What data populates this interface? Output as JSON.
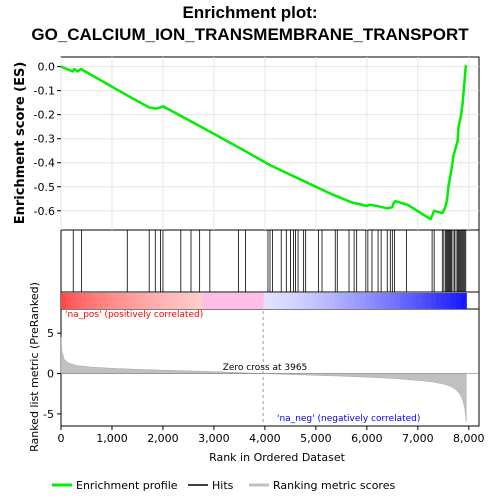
{
  "title_line1": "Enrichment plot:",
  "title_line2": "GO_CALCIUM_ION_TRANSMEMBRANE_TRANSPORT",
  "chart_data": {
    "type": "line",
    "title": "Enrichment plot: GO_CALCIUM_ION_TRANSMEMBRANE_TRANSPORT",
    "xlabel": "Rank in Ordered Dataset",
    "es_ylabel": "Enrichment score (ES)",
    "metric_ylabel": "Ranked list metric (PreRanked)",
    "xlim": [
      0,
      8200
    ],
    "es_ylim": [
      -0.68,
      0.04
    ],
    "metric_ylim": [
      -6.5,
      8
    ],
    "x_ticks": [
      0,
      1000,
      2000,
      3000,
      4000,
      5000,
      6000,
      7000,
      8000
    ],
    "es_ticks": [
      0.0,
      -0.1,
      -0.2,
      -0.3,
      -0.4,
      -0.5,
      -0.6
    ],
    "metric_ticks": [
      5,
      0,
      -5
    ],
    "zero_cross_label": "Zero cross at 3965",
    "zero_cross": 3965,
    "pos_label": "'na_pos' (positively correlated)",
    "neg_label": "'na_neg' (negatively correlated)",
    "legend": [
      "Enrichment profile",
      "Hits",
      "Ranking metric scores"
    ],
    "legend_placement": "bottom",
    "colors": {
      "profile": "#00ee00",
      "hits": "#000000",
      "metric": "#c0c0c0",
      "pos": "#ff0000",
      "neg": "#0000ff"
    },
    "n_genes": 7950,
    "es_curve": [
      [
        0,
        0.0
      ],
      [
        230,
        -0.02
      ],
      [
        260,
        -0.01
      ],
      [
        330,
        -0.02
      ],
      [
        390,
        -0.01
      ],
      [
        1300,
        -0.12
      ],
      [
        1730,
        -0.17
      ],
      [
        1850,
        -0.175
      ],
      [
        1950,
        -0.17
      ],
      [
        2000,
        -0.165
      ],
      [
        2700,
        -0.245
      ],
      [
        3000,
        -0.28
      ],
      [
        3600,
        -0.35
      ],
      [
        4100,
        -0.41
      ],
      [
        4500,
        -0.45
      ],
      [
        4800,
        -0.48
      ],
      [
        5000,
        -0.5
      ],
      [
        5300,
        -0.53
      ],
      [
        5700,
        -0.565
      ],
      [
        5900,
        -0.575
      ],
      [
        6000,
        -0.58
      ],
      [
        6050,
        -0.575
      ],
      [
        6200,
        -0.58
      ],
      [
        6300,
        -0.585
      ],
      [
        6400,
        -0.59
      ],
      [
        6500,
        -0.585
      ],
      [
        6520,
        -0.57
      ],
      [
        6560,
        -0.56
      ],
      [
        6800,
        -0.575
      ],
      [
        7250,
        -0.635
      ],
      [
        7320,
        -0.6
      ],
      [
        7480,
        -0.61
      ],
      [
        7530,
        -0.59
      ],
      [
        7570,
        -0.56
      ],
      [
        7600,
        -0.5
      ],
      [
        7650,
        -0.44
      ],
      [
        7680,
        -0.4
      ],
      [
        7700,
        -0.37
      ],
      [
        7740,
        -0.34
      ],
      [
        7780,
        -0.31
      ],
      [
        7800,
        -0.25
      ],
      [
        7850,
        -0.2
      ],
      [
        7880,
        -0.15
      ],
      [
        7900,
        -0.1
      ],
      [
        7920,
        -0.05
      ],
      [
        7940,
        0.0
      ],
      [
        7960,
        0.005
      ]
    ],
    "hits": [
      240,
      400,
      1300,
      1730,
      1850,
      1950,
      2000,
      2350,
      2550,
      2720,
      2920,
      3480,
      3620,
      4060,
      4100,
      4150,
      4320,
      4420,
      4500,
      4560,
      4600,
      4650,
      4760,
      4800,
      5050,
      5120,
      5380,
      5420,
      5650,
      5750,
      5800,
      5980,
      6020,
      6100,
      6220,
      6280,
      6400,
      6460,
      6500,
      6540,
      6780,
      7280,
      7320,
      7480,
      7510,
      7540,
      7560,
      7580,
      7600,
      7620,
      7640,
      7660,
      7690,
      7720,
      7750,
      7780,
      7800,
      7820,
      7840,
      7860,
      7880,
      7900,
      7920,
      7940
    ],
    "metric_curve": [
      [
        0,
        4.5
      ],
      [
        20,
        2.8
      ],
      [
        60,
        1.8
      ],
      [
        150,
        1.3
      ],
      [
        300,
        1.0
      ],
      [
        600,
        0.8
      ],
      [
        1000,
        0.65
      ],
      [
        1500,
        0.52
      ],
      [
        2000,
        0.42
      ],
      [
        2500,
        0.33
      ],
      [
        3000,
        0.24
      ],
      [
        3500,
        0.12
      ],
      [
        3965,
        0.0
      ],
      [
        4500,
        -0.12
      ],
      [
        5000,
        -0.22
      ],
      [
        5500,
        -0.32
      ],
      [
        6000,
        -0.45
      ],
      [
        6500,
        -0.6
      ],
      [
        7000,
        -0.85
      ],
      [
        7300,
        -1.05
      ],
      [
        7500,
        -1.3
      ],
      [
        7650,
        -1.6
      ],
      [
        7750,
        -2.0
      ],
      [
        7830,
        -2.6
      ],
      [
        7880,
        -3.3
      ],
      [
        7920,
        -4.3
      ],
      [
        7950,
        -6.0
      ]
    ]
  }
}
